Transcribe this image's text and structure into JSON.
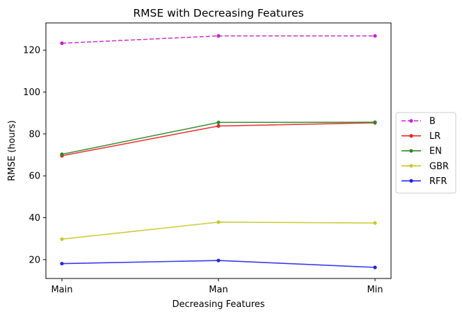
{
  "chart_data": {
    "type": "line",
    "title": "RMSE with Decreasing Features",
    "xlabel": "Decreasing Features",
    "ylabel": "RMSE (hours)",
    "categories": [
      "Main",
      "Man",
      "Min"
    ],
    "ylim": [
      11,
      133
    ],
    "yticks": [
      20,
      40,
      60,
      80,
      100,
      120
    ],
    "grid": false,
    "legend_position": "right",
    "series": [
      {
        "name": "B",
        "values": [
          123.3,
          126.8,
          126.8
        ],
        "color": "#cc22cc",
        "dashed": true
      },
      {
        "name": "LR",
        "values": [
          69.6,
          83.8,
          85.3
        ],
        "color": "#ee2222",
        "dashed": false
      },
      {
        "name": "EN",
        "values": [
          70.3,
          85.5,
          85.6
        ],
        "color": "#2a8a2a",
        "dashed": false
      },
      {
        "name": "GBR",
        "values": [
          29.8,
          37.9,
          37.5
        ],
        "color": "#c8c82a",
        "dashed": false
      },
      {
        "name": "RFR",
        "values": [
          18.1,
          19.6,
          16.3
        ],
        "color": "#2222ee",
        "dashed": false
      }
    ]
  }
}
